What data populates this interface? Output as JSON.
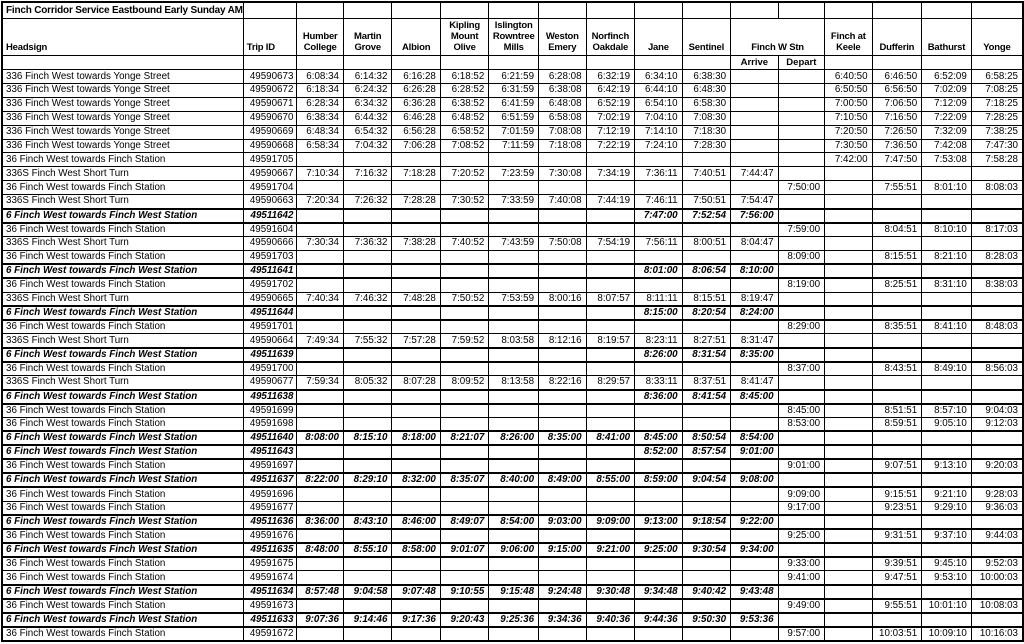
{
  "title": "Finch Corridor Service Eastbound Early Sunday AM",
  "colors": {
    "border": "#000000",
    "background": "#ffffff",
    "text": "#000000"
  },
  "header": {
    "headsign": "Headsign",
    "trip_id": "Trip ID",
    "stops": [
      "Humber College",
      "Martin Grove",
      "Albion",
      "Kipling Mount Olive",
      "Islington Rowntree Mills",
      "Weston Emery",
      "Norfinch Oakdale",
      "Jane",
      "Sentinel"
    ],
    "finch_w_stn": "Finch W Stn",
    "finch_w_stn_sub": [
      "Arrive",
      "Depart"
    ],
    "after_stops": [
      "Finch at Keele",
      "Dufferin",
      "Bathurst",
      "Yonge"
    ]
  },
  "rows": [
    {
      "headsign": "336 Finch West towards Yonge Street",
      "trip_id": "49590673",
      "em": false,
      "times": [
        "6:08:34",
        "6:14:32",
        "6:16:28",
        "6:18:52",
        "6:21:59",
        "6:28:08",
        "6:32:19",
        "6:34:10",
        "6:38:30",
        "",
        "",
        "6:40:50",
        "6:46:50",
        "6:52:09",
        "6:58:25"
      ]
    },
    {
      "headsign": "336 Finch West towards Yonge Street",
      "trip_id": "49590672",
      "em": false,
      "times": [
        "6:18:34",
        "6:24:32",
        "6:26:28",
        "6:28:52",
        "6:31:59",
        "6:38:08",
        "6:42:19",
        "6:44:10",
        "6:48:30",
        "",
        "",
        "6:50:50",
        "6:56:50",
        "7:02:09",
        "7:08:25"
      ]
    },
    {
      "headsign": "336 Finch West towards Yonge Street",
      "trip_id": "49590671",
      "em": false,
      "times": [
        "6:28:34",
        "6:34:32",
        "6:36:28",
        "6:38:52",
        "6:41:59",
        "6:48:08",
        "6:52:19",
        "6:54:10",
        "6:58:30",
        "",
        "",
        "7:00:50",
        "7:06:50",
        "7:12:09",
        "7:18:25"
      ]
    },
    {
      "headsign": "336 Finch West towards Yonge Street",
      "trip_id": "49590670",
      "em": false,
      "times": [
        "6:38:34",
        "6:44:32",
        "6:46:28",
        "6:48:52",
        "6:51:59",
        "6:58:08",
        "7:02:19",
        "7:04:10",
        "7:08:30",
        "",
        "",
        "7:10:50",
        "7:16:50",
        "7:22:09",
        "7:28:25"
      ]
    },
    {
      "headsign": "336 Finch West towards Yonge Street",
      "trip_id": "49590669",
      "em": false,
      "times": [
        "6:48:34",
        "6:54:32",
        "6:56:28",
        "6:58:52",
        "7:01:59",
        "7:08:08",
        "7:12:19",
        "7:14:10",
        "7:18:30",
        "",
        "",
        "7:20:50",
        "7:26:50",
        "7:32:09",
        "7:38:25"
      ]
    },
    {
      "headsign": "336 Finch West towards Yonge Street",
      "trip_id": "49590668",
      "em": false,
      "times": [
        "6:58:34",
        "7:04:32",
        "7:06:28",
        "7:08:52",
        "7:11:59",
        "7:18:08",
        "7:22:19",
        "7:24:10",
        "7:28:30",
        "",
        "",
        "7:30:50",
        "7:36:50",
        "7:42:08",
        "7:47:30"
      ]
    },
    {
      "headsign": "36 Finch West towards Finch Station",
      "trip_id": "49591705",
      "em": false,
      "times": [
        "",
        "",
        "",
        "",
        "",
        "",
        "",
        "",
        "",
        "",
        "",
        "7:42:00",
        "7:47:50",
        "7:53:08",
        "7:58:28"
      ]
    },
    {
      "headsign": "336S Finch West Short Turn",
      "trip_id": "49590667",
      "em": false,
      "times": [
        "7:10:34",
        "7:16:32",
        "7:18:28",
        "7:20:52",
        "7:23:59",
        "7:30:08",
        "7:34:19",
        "7:36:11",
        "7:40:51",
        "7:44:47",
        "",
        "",
        "",
        "",
        ""
      ]
    },
    {
      "headsign": "36 Finch West towards Finch Station",
      "trip_id": "49591704",
      "em": false,
      "times": [
        "",
        "",
        "",
        "",
        "",
        "",
        "",
        "",
        "",
        "",
        "7:50:00",
        "",
        "7:55:51",
        "8:01:10",
        "8:08:03"
      ]
    },
    {
      "headsign": "336S Finch West Short Turn",
      "trip_id": "49590663",
      "em": false,
      "times": [
        "7:20:34",
        "7:26:32",
        "7:28:28",
        "7:30:52",
        "7:33:59",
        "7:40:08",
        "7:44:19",
        "7:46:11",
        "7:50:51",
        "7:54:47",
        "",
        "",
        "",
        "",
        ""
      ]
    },
    {
      "headsign": "6 Finch West towards Finch West Station",
      "trip_id": "49511642",
      "em": true,
      "times": [
        "",
        "",
        "",
        "",
        "",
        "",
        "",
        "7:47:00",
        "7:52:54",
        "7:56:00",
        "",
        "",
        "",
        "",
        ""
      ]
    },
    {
      "headsign": "36 Finch West towards Finch Station",
      "trip_id": "49591604",
      "em": false,
      "times": [
        "",
        "",
        "",
        "",
        "",
        "",
        "",
        "",
        "",
        "",
        "7:59:00",
        "",
        "8:04:51",
        "8:10:10",
        "8:17:03"
      ]
    },
    {
      "headsign": "336S Finch West Short Turn",
      "trip_id": "49590666",
      "em": false,
      "times": [
        "7:30:34",
        "7:36:32",
        "7:38:28",
        "7:40:52",
        "7:43:59",
        "7:50:08",
        "7:54:19",
        "7:56:11",
        "8:00:51",
        "8:04:47",
        "",
        "",
        "",
        "",
        ""
      ]
    },
    {
      "headsign": "36 Finch West towards Finch Station",
      "trip_id": "49591703",
      "em": false,
      "times": [
        "",
        "",
        "",
        "",
        "",
        "",
        "",
        "",
        "",
        "",
        "8:09:00",
        "",
        "8:15:51",
        "8:21:10",
        "8:28:03"
      ]
    },
    {
      "headsign": "6 Finch West towards Finch West Station",
      "trip_id": "49511641",
      "em": true,
      "times": [
        "",
        "",
        "",
        "",
        "",
        "",
        "",
        "8:01:00",
        "8:06:54",
        "8:10:00",
        "",
        "",
        "",
        "",
        ""
      ]
    },
    {
      "headsign": "36 Finch West towards Finch Station",
      "trip_id": "49591702",
      "em": false,
      "times": [
        "",
        "",
        "",
        "",
        "",
        "",
        "",
        "",
        "",
        "",
        "8:19:00",
        "",
        "8:25:51",
        "8:31:10",
        "8:38:03"
      ]
    },
    {
      "headsign": "336S Finch West Short Turn",
      "trip_id": "49590665",
      "em": false,
      "times": [
        "7:40:34",
        "7:46:32",
        "7:48:28",
        "7:50:52",
        "7:53:59",
        "8:00:16",
        "8:07:57",
        "8:11:11",
        "8:15:51",
        "8:19:47",
        "",
        "",
        "",
        "",
        ""
      ]
    },
    {
      "headsign": "6 Finch West towards Finch West Station",
      "trip_id": "49511644",
      "em": true,
      "times": [
        "",
        "",
        "",
        "",
        "",
        "",
        "",
        "8:15:00",
        "8:20:54",
        "8:24:00",
        "",
        "",
        "",
        "",
        ""
      ]
    },
    {
      "headsign": "36 Finch West towards Finch Station",
      "trip_id": "49591701",
      "em": false,
      "times": [
        "",
        "",
        "",
        "",
        "",
        "",
        "",
        "",
        "",
        "",
        "8:29:00",
        "",
        "8:35:51",
        "8:41:10",
        "8:48:03"
      ]
    },
    {
      "headsign": "336S Finch West Short Turn",
      "trip_id": "49590664",
      "em": false,
      "times": [
        "7:49:34",
        "7:55:32",
        "7:57:28",
        "7:59:52",
        "8:03:58",
        "8:12:16",
        "8:19:57",
        "8:23:11",
        "8:27:51",
        "8:31:47",
        "",
        "",
        "",
        "",
        ""
      ]
    },
    {
      "headsign": "6 Finch West towards Finch West Station",
      "trip_id": "49511639",
      "em": true,
      "times": [
        "",
        "",
        "",
        "",
        "",
        "",
        "",
        "8:26:00",
        "8:31:54",
        "8:35:00",
        "",
        "",
        "",
        "",
        ""
      ]
    },
    {
      "headsign": "36 Finch West towards Finch Station",
      "trip_id": "49591700",
      "em": false,
      "times": [
        "",
        "",
        "",
        "",
        "",
        "",
        "",
        "",
        "",
        "",
        "8:37:00",
        "",
        "8:43:51",
        "8:49:10",
        "8:56:03"
      ]
    },
    {
      "headsign": "336S Finch West Short Turn",
      "trip_id": "49590677",
      "em": false,
      "times": [
        "7:59:34",
        "8:05:32",
        "8:07:28",
        "8:09:52",
        "8:13:58",
        "8:22:16",
        "8:29:57",
        "8:33:11",
        "8:37:51",
        "8:41:47",
        "",
        "",
        "",
        "",
        ""
      ]
    },
    {
      "headsign": "6 Finch West towards Finch West Station",
      "trip_id": "49511638",
      "em": true,
      "times": [
        "",
        "",
        "",
        "",
        "",
        "",
        "",
        "8:36:00",
        "8:41:54",
        "8:45:00",
        "",
        "",
        "",
        "",
        ""
      ]
    },
    {
      "headsign": "36 Finch West towards Finch Station",
      "trip_id": "49591699",
      "em": false,
      "times": [
        "",
        "",
        "",
        "",
        "",
        "",
        "",
        "",
        "",
        "",
        "8:45:00",
        "",
        "8:51:51",
        "8:57:10",
        "9:04:03"
      ]
    },
    {
      "headsign": "36 Finch West towards Finch Station",
      "trip_id": "49591698",
      "em": false,
      "times": [
        "",
        "",
        "",
        "",
        "",
        "",
        "",
        "",
        "",
        "",
        "8:53:00",
        "",
        "8:59:51",
        "9:05:10",
        "9:12:03"
      ]
    },
    {
      "headsign": "6 Finch West towards Finch West Station",
      "trip_id": "49511640",
      "em": true,
      "times": [
        "8:08:00",
        "8:15:10",
        "8:18:00",
        "8:21:07",
        "8:26:00",
        "8:35:00",
        "8:41:00",
        "8:45:00",
        "8:50:54",
        "8:54:00",
        "",
        "",
        "",
        "",
        ""
      ]
    },
    {
      "headsign": "6 Finch West towards Finch West Station",
      "trip_id": "49511643",
      "em": true,
      "times": [
        "",
        "",
        "",
        "",
        "",
        "",
        "",
        "8:52:00",
        "8:57:54",
        "9:01:00",
        "",
        "",
        "",
        "",
        ""
      ]
    },
    {
      "headsign": "36 Finch West towards Finch Station",
      "trip_id": "49591697",
      "em": false,
      "times": [
        "",
        "",
        "",
        "",
        "",
        "",
        "",
        "",
        "",
        "",
        "9:01:00",
        "",
        "9:07:51",
        "9:13:10",
        "9:20:03"
      ]
    },
    {
      "headsign": "6 Finch West towards Finch West Station",
      "trip_id": "49511637",
      "em": true,
      "times": [
        "8:22:00",
        "8:29:10",
        "8:32:00",
        "8:35:07",
        "8:40:00",
        "8:49:00",
        "8:55:00",
        "8:59:00",
        "9:04:54",
        "9:08:00",
        "",
        "",
        "",
        "",
        ""
      ]
    },
    {
      "headsign": "36 Finch West towards Finch Station",
      "trip_id": "49591696",
      "em": false,
      "times": [
        "",
        "",
        "",
        "",
        "",
        "",
        "",
        "",
        "",
        "",
        "9:09:00",
        "",
        "9:15:51",
        "9:21:10",
        "9:28:03"
      ]
    },
    {
      "headsign": "36 Finch West towards Finch Station",
      "trip_id": "49591677",
      "em": false,
      "times": [
        "",
        "",
        "",
        "",
        "",
        "",
        "",
        "",
        "",
        "",
        "9:17:00",
        "",
        "9:23:51",
        "9:29:10",
        "9:36:03"
      ]
    },
    {
      "headsign": "6 Finch West towards Finch West Station",
      "trip_id": "49511636",
      "em": true,
      "times": [
        "8:36:00",
        "8:43:10",
        "8:46:00",
        "8:49:07",
        "8:54:00",
        "9:03:00",
        "9:09:00",
        "9:13:00",
        "9:18:54",
        "9:22:00",
        "",
        "",
        "",
        "",
        ""
      ]
    },
    {
      "headsign": "36 Finch West towards Finch Station",
      "trip_id": "49591676",
      "em": false,
      "times": [
        "",
        "",
        "",
        "",
        "",
        "",
        "",
        "",
        "",
        "",
        "9:25:00",
        "",
        "9:31:51",
        "9:37:10",
        "9:44:03"
      ]
    },
    {
      "headsign": "6 Finch West towards Finch West Station",
      "trip_id": "49511635",
      "em": true,
      "times": [
        "8:48:00",
        "8:55:10",
        "8:58:00",
        "9:01:07",
        "9:06:00",
        "9:15:00",
        "9:21:00",
        "9:25:00",
        "9:30:54",
        "9:34:00",
        "",
        "",
        "",
        "",
        ""
      ]
    },
    {
      "headsign": "36 Finch West towards Finch Station",
      "trip_id": "49591675",
      "em": false,
      "times": [
        "",
        "",
        "",
        "",
        "",
        "",
        "",
        "",
        "",
        "",
        "9:33:00",
        "",
        "9:39:51",
        "9:45:10",
        "9:52:03"
      ]
    },
    {
      "headsign": "36 Finch West towards Finch Station",
      "trip_id": "49591674",
      "em": false,
      "times": [
        "",
        "",
        "",
        "",
        "",
        "",
        "",
        "",
        "",
        "",
        "9:41:00",
        "",
        "9:47:51",
        "9:53:10",
        "10:00:03"
      ]
    },
    {
      "headsign": "6 Finch West towards Finch West Station",
      "trip_id": "49511634",
      "em": true,
      "times": [
        "8:57:48",
        "9:04:58",
        "9:07:48",
        "9:10:55",
        "9:15:48",
        "9:24:48",
        "9:30:48",
        "9:34:48",
        "9:40:42",
        "9:43:48",
        "",
        "",
        "",
        "",
        ""
      ]
    },
    {
      "headsign": "36 Finch West towards Finch Station",
      "trip_id": "49591673",
      "em": false,
      "times": [
        "",
        "",
        "",
        "",
        "",
        "",
        "",
        "",
        "",
        "",
        "9:49:00",
        "",
        "9:55:51",
        "10:01:10",
        "10:08:03"
      ]
    },
    {
      "headsign": "6 Finch West towards Finch West Station",
      "trip_id": "49511633",
      "em": true,
      "times": [
        "9:07:36",
        "9:14:46",
        "9:17:36",
        "9:20:43",
        "9:25:36",
        "9:34:36",
        "9:40:36",
        "9:44:36",
        "9:50:30",
        "9:53:36",
        "",
        "",
        "",
        "",
        ""
      ]
    },
    {
      "headsign": "36 Finch West towards Finch Station",
      "trip_id": "49591672",
      "em": false,
      "times": [
        "",
        "",
        "",
        "",
        "",
        "",
        "",
        "",
        "",
        "",
        "9:57:00",
        "",
        "10:03:51",
        "10:09:10",
        "10:16:03"
      ]
    }
  ]
}
